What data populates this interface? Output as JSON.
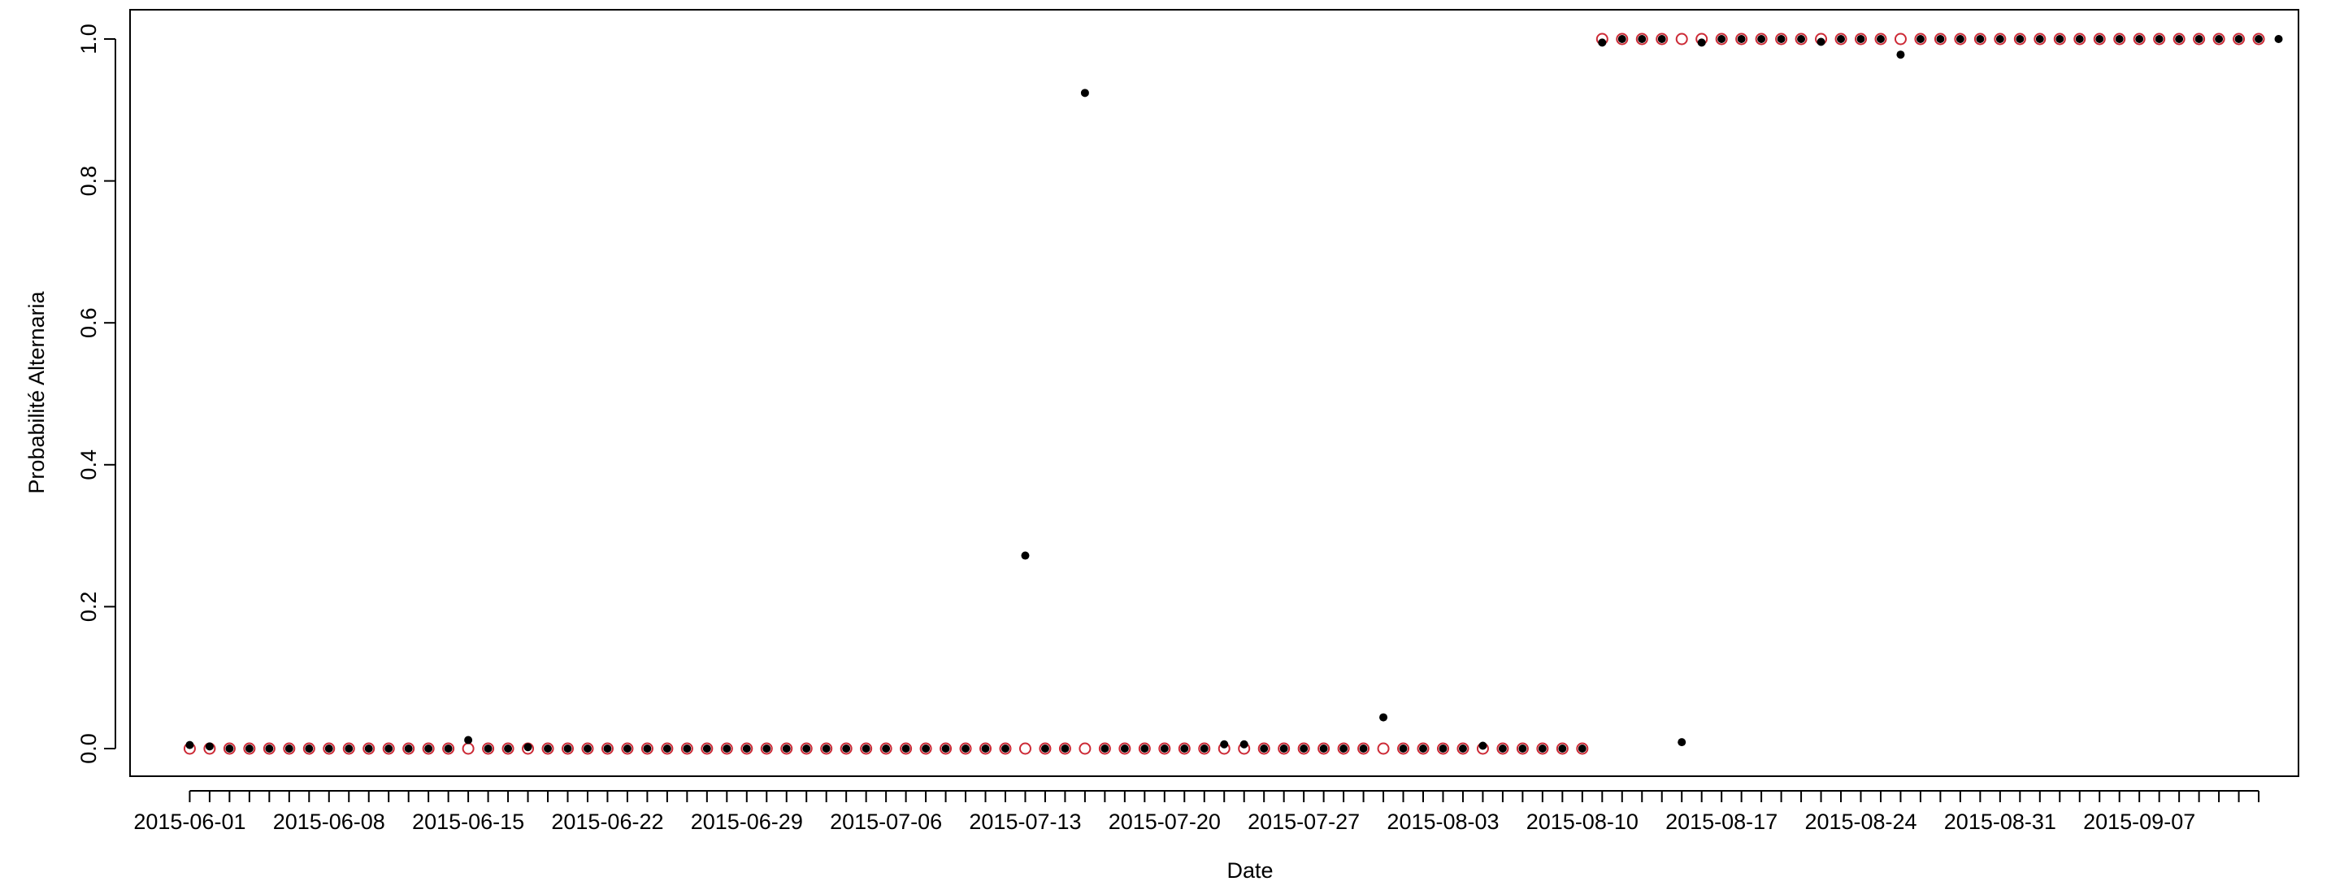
{
  "chart_data": {
    "type": "scatter",
    "xlabel": "Date",
    "ylabel": "Probabilité Alternaria",
    "x_start": "2015-06-01",
    "x_end": "2015-09-13",
    "xlim": [
      "2015-05-29",
      "2015-09-15"
    ],
    "ylim": [
      0,
      1
    ],
    "x_tick_labels": [
      "2015-06-01",
      "2015-06-08",
      "2015-06-15",
      "2015-06-22",
      "2015-06-29",
      "2015-07-06",
      "2015-07-13",
      "2015-07-20",
      "2015-07-27",
      "2015-08-03",
      "2015-08-10",
      "2015-08-17",
      "2015-08-24",
      "2015-08-31",
      "2015-09-07"
    ],
    "y_ticks": [
      0,
      0.2,
      0.4,
      0.6,
      0.8,
      1
    ],
    "y_tick_labels": [
      "0.0",
      "0.2",
      "0.4",
      "0.6",
      "0.8",
      "1.0"
    ],
    "grid": false,
    "series": [
      {
        "marker": "open-circle",
        "color": "#cc2a36",
        "values": [
          0,
          0,
          0,
          0,
          0,
          0,
          0,
          0,
          0,
          0,
          0,
          0,
          0,
          0,
          0,
          0,
          0,
          0,
          0,
          0,
          0,
          0,
          0,
          0,
          0,
          0,
          0,
          0,
          0,
          0,
          0,
          0,
          0,
          0,
          0,
          0,
          0,
          0,
          0,
          0,
          0,
          0,
          0,
          0,
          0,
          0,
          0,
          0,
          0,
          0,
          0,
          0,
          0,
          0,
          0,
          0,
          0,
          0,
          0,
          0,
          0,
          0,
          0,
          0,
          0,
          0,
          0,
          0,
          0,
          0,
          0,
          1,
          1,
          1,
          1,
          1,
          1,
          1,
          1,
          1,
          1,
          1,
          1,
          1,
          1,
          1,
          1,
          1,
          1,
          1,
          1,
          1,
          1,
          1,
          1,
          1,
          1,
          1,
          1,
          1,
          1,
          1,
          1,
          1,
          1
        ]
      },
      {
        "marker": "filled-dot",
        "color": "#000000",
        "values": [
          0.005,
          0.003,
          0,
          0,
          0,
          0,
          0,
          0,
          0,
          0,
          0,
          0,
          0,
          0,
          0.012,
          0,
          0,
          0.002,
          0,
          0,
          0,
          0,
          0,
          0,
          0,
          0,
          0,
          0,
          0,
          0,
          0,
          0,
          0,
          0,
          0,
          0,
          0,
          0,
          0,
          0,
          0,
          0,
          0.272,
          0,
          0,
          0.924,
          0,
          0,
          0,
          0,
          0,
          0,
          0.006,
          0.006,
          0,
          0,
          0,
          0,
          0,
          0,
          0.044,
          0,
          0,
          0,
          0,
          0.004,
          0,
          0,
          0,
          0,
          0,
          0.995,
          1,
          1,
          1,
          0.009,
          0.995,
          1,
          1,
          1,
          1,
          1,
          0.996,
          1,
          1,
          1,
          0.978,
          1,
          1,
          1,
          1,
          1,
          1,
          1,
          1,
          1,
          1,
          1,
          1,
          1,
          1,
          1,
          1,
          1,
          1,
          1
        ]
      }
    ]
  }
}
